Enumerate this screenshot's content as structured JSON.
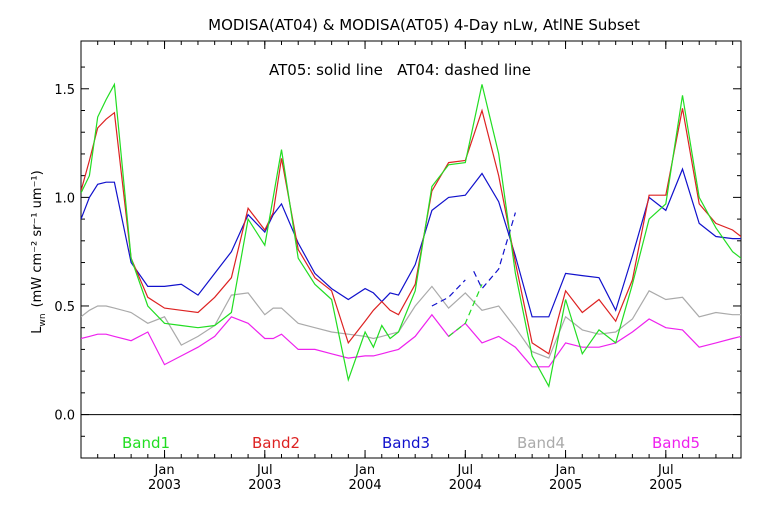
{
  "chart_data": {
    "type": "line",
    "title": "MODISA(AT04) & MODISA(AT05) 4-Day nLw, AtlNE Subset",
    "subtitle": "AT05: solid line   AT04: dashed line",
    "ylabel_main": "L",
    "ylabel_sub": "wn",
    "ylabel_units": "(mW cm⁻² sr⁻¹ um⁻¹)",
    "xlabel": "",
    "ylim": [
      -0.2,
      1.72
    ],
    "x_axis": "month index, 0 = Sep 2002",
    "xlim": [
      0,
      39.5
    ],
    "y_ticks": [
      {
        "value": 0.0,
        "label": "0.0"
      },
      {
        "value": 0.5,
        "label": "0.5"
      },
      {
        "value": 1.0,
        "label": "1.0"
      },
      {
        "value": 1.5,
        "label": "1.5"
      }
    ],
    "x_ticks": [
      {
        "value": 5,
        "label1": "Jan",
        "label2": "2003"
      },
      {
        "value": 11,
        "label1": "Jul",
        "label2": "2003"
      },
      {
        "value": 17,
        "label1": "Jan",
        "label2": "2004"
      },
      {
        "value": 23,
        "label1": "Jul",
        "label2": "2004"
      },
      {
        "value": 29,
        "label1": "Jan",
        "label2": "2005"
      },
      {
        "value": 35,
        "label1": "Jul",
        "label2": "2005"
      }
    ],
    "x": [
      0,
      0.5,
      1,
      1.5,
      2,
      3,
      4,
      5,
      6,
      7,
      8,
      9,
      10,
      11,
      11.5,
      12,
      13,
      14,
      15,
      16,
      17,
      17.5,
      18,
      18.5,
      19,
      20,
      21,
      22,
      23,
      24,
      25,
      26,
      27,
      28,
      29,
      30,
      31,
      32,
      33,
      34,
      35,
      36,
      37,
      38,
      39,
      39.5
    ],
    "series": [
      {
        "name": "Band1",
        "color": "#22dd22",
        "values": [
          1.02,
          1.1,
          1.37,
          1.45,
          1.52,
          0.72,
          0.5,
          0.42,
          0.41,
          0.4,
          0.41,
          0.47,
          0.9,
          0.78,
          1.0,
          1.22,
          0.72,
          0.6,
          0.53,
          0.16,
          0.38,
          0.31,
          0.41,
          0.35,
          0.38,
          0.57,
          1.05,
          1.15,
          1.16,
          1.52,
          1.2,
          0.65,
          0.27,
          0.13,
          0.53,
          0.28,
          0.39,
          0.33,
          0.6,
          0.9,
          0.97,
          1.47,
          1.0,
          0.86,
          0.75,
          0.72
        ]
      },
      {
        "name": "Band2",
        "color": "#dd2222",
        "values": [
          1.03,
          1.17,
          1.32,
          1.36,
          1.39,
          0.72,
          0.54,
          0.49,
          0.48,
          0.47,
          0.54,
          0.63,
          0.95,
          0.85,
          0.93,
          1.18,
          0.76,
          0.63,
          0.57,
          0.33,
          0.43,
          0.48,
          0.52,
          0.48,
          0.46,
          0.6,
          1.03,
          1.16,
          1.17,
          1.4,
          1.1,
          0.7,
          0.33,
          0.28,
          0.57,
          0.47,
          0.53,
          0.43,
          0.62,
          1.01,
          1.01,
          1.41,
          0.97,
          0.88,
          0.85,
          0.82
        ]
      },
      {
        "name": "Band3",
        "color": "#1111cc",
        "values": [
          0.9,
          1.0,
          1.06,
          1.07,
          1.07,
          0.7,
          0.59,
          0.59,
          0.6,
          0.55,
          0.65,
          0.75,
          0.92,
          0.84,
          0.92,
          0.97,
          0.79,
          0.65,
          0.58,
          0.53,
          0.58,
          0.56,
          0.52,
          0.56,
          0.55,
          0.69,
          0.94,
          1.0,
          1.01,
          1.11,
          0.98,
          0.73,
          0.45,
          0.45,
          0.65,
          0.64,
          0.63,
          0.48,
          0.73,
          1.0,
          0.94,
          1.13,
          0.88,
          0.82,
          0.81,
          0.81
        ]
      },
      {
        "name": "Band4",
        "color": "#aaaaaa",
        "values": [
          0.45,
          0.48,
          0.5,
          0.5,
          0.49,
          0.47,
          0.42,
          0.45,
          0.32,
          0.36,
          0.41,
          0.55,
          0.56,
          0.46,
          0.49,
          0.49,
          0.42,
          0.4,
          0.38,
          0.37,
          0.36,
          0.35,
          0.36,
          0.37,
          0.38,
          0.5,
          0.59,
          0.49,
          0.56,
          0.48,
          0.5,
          0.4,
          0.29,
          0.26,
          0.45,
          0.39,
          0.37,
          0.38,
          0.44,
          0.57,
          0.53,
          0.54,
          0.45,
          0.47,
          0.46,
          0.46
        ]
      },
      {
        "name": "Band5",
        "color": "#ee22ee",
        "values": [
          0.35,
          0.36,
          0.37,
          0.37,
          0.36,
          0.34,
          0.38,
          0.23,
          0.27,
          0.31,
          0.36,
          0.45,
          0.42,
          0.35,
          0.35,
          0.37,
          0.3,
          0.3,
          0.28,
          0.26,
          0.27,
          0.27,
          0.28,
          0.29,
          0.3,
          0.36,
          0.46,
          0.36,
          0.42,
          0.33,
          0.36,
          0.31,
          0.22,
          0.22,
          0.33,
          0.31,
          0.31,
          0.33,
          0.38,
          0.44,
          0.4,
          0.39,
          0.31,
          0.33,
          0.35,
          0.36
        ]
      }
    ],
    "dashed_segments": [
      {
        "series": "Band3",
        "color": "#1111cc",
        "x": [
          23.5,
          24,
          25,
          26
        ],
        "values": [
          0.66,
          0.58,
          0.67,
          0.93
        ]
      },
      {
        "series": "Band3",
        "color": "#1111cc",
        "x": [
          21,
          22,
          23
        ],
        "values": [
          0.5,
          0.54,
          0.62
        ]
      },
      {
        "series": "Band1",
        "color": "#22dd22",
        "x": [
          22,
          23,
          24
        ],
        "values": [
          0.36,
          0.42,
          0.6
        ]
      }
    ],
    "legend_placement": "bottom",
    "grid": false,
    "zero_line": true
  }
}
